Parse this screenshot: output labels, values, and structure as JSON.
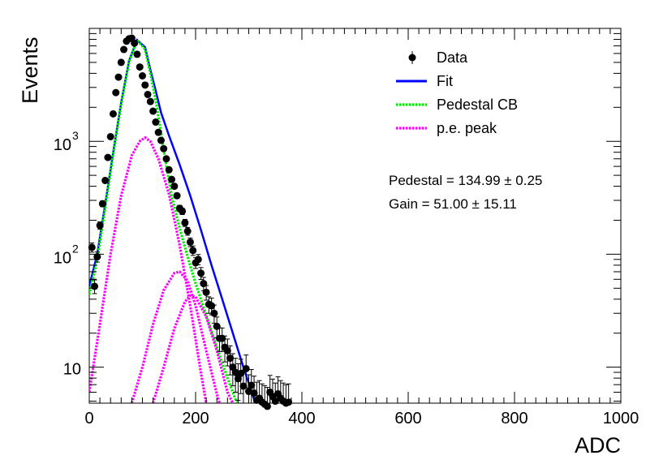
{
  "chart_data": {
    "type": "scatter",
    "xlabel": "ADC",
    "ylabel": "Events",
    "xlim": [
      0,
      1000
    ],
    "ylim": [
      4.8,
      10000
    ],
    "y_scale": "log",
    "grid": false,
    "legend_position": "top-right",
    "x_ticks": [
      "0",
      "200",
      "400",
      "600",
      "800",
      "1000"
    ],
    "y_ticks": [
      {
        "value": 10,
        "base": "10",
        "exp": ""
      },
      {
        "value": 100,
        "base": "10",
        "exp": "2"
      },
      {
        "value": 1000,
        "base": "10",
        "exp": "3"
      }
    ],
    "legend": [
      {
        "label": "Data",
        "kind": "marker",
        "color": "#000000"
      },
      {
        "label": "Fit",
        "kind": "line",
        "color": "#0000ff"
      },
      {
        "label": "Pedestal CB",
        "kind": "dotted",
        "color": "#00ee00"
      },
      {
        "label": "p.e. peak",
        "kind": "dotted",
        "color": "#ff00ff"
      }
    ],
    "annotations": [
      "Pedestal = 134.99 ± 0.25",
      "Gain = 51.00 ± 15.11"
    ],
    "series": [
      {
        "name": "Data",
        "style": "points",
        "color": "#000000",
        "points": [
          [
            5,
            115
          ],
          [
            10,
            52
          ],
          [
            15,
            95
          ],
          [
            20,
            180
          ],
          [
            25,
            280
          ],
          [
            30,
            450
          ],
          [
            35,
            720
          ],
          [
            40,
            1100
          ],
          [
            45,
            1750
          ],
          [
            50,
            2700
          ],
          [
            55,
            3700
          ],
          [
            60,
            5000
          ],
          [
            65,
            6500
          ],
          [
            70,
            7700
          ],
          [
            75,
            8100
          ],
          [
            80,
            8200
          ],
          [
            85,
            7400
          ],
          [
            90,
            5900
          ],
          [
            95,
            4550
          ],
          [
            100,
            3800
          ],
          [
            105,
            3150
          ],
          [
            110,
            2600
          ],
          [
            115,
            2250
          ],
          [
            120,
            1850
          ],
          [
            125,
            1480
          ],
          [
            130,
            1200
          ],
          [
            135,
            1020
          ],
          [
            140,
            860
          ],
          [
            145,
            700
          ],
          [
            150,
            560
          ],
          [
            155,
            460
          ],
          [
            160,
            400
          ],
          [
            165,
            330
          ],
          [
            170,
            255
          ],
          [
            175,
            240
          ],
          [
            180,
            190
          ],
          [
            185,
            160
          ],
          [
            190,
            128
          ],
          [
            195,
            108
          ],
          [
            200,
            84
          ],
          [
            205,
            90
          ],
          [
            210,
            68
          ],
          [
            215,
            55
          ],
          [
            220,
            46
          ],
          [
            225,
            36
          ],
          [
            230,
            35
          ],
          [
            235,
            30
          ],
          [
            240,
            23
          ],
          [
            245,
            18
          ],
          [
            250,
            18
          ],
          [
            255,
            15
          ],
          [
            260,
            14
          ],
          [
            265,
            12
          ],
          [
            270,
            10
          ],
          [
            275,
            9
          ],
          [
            280,
            7.9
          ],
          [
            285,
            8.8
          ],
          [
            290,
            6.8
          ],
          [
            295,
            9.7
          ],
          [
            300,
            6.1
          ],
          [
            305,
            6.9
          ],
          [
            310,
            5.9
          ],
          [
            315,
            5.1
          ],
          [
            320,
            5.3
          ],
          [
            325,
            4.9
          ],
          [
            330,
            4.7
          ],
          [
            335,
            4.5
          ],
          [
            340,
            6.0
          ],
          [
            345,
            5.5
          ],
          [
            350,
            5.0
          ],
          [
            355,
            5.8
          ],
          [
            360,
            5.3
          ],
          [
            365,
            5.0
          ],
          [
            370,
            4.8
          ],
          [
            375,
            4.9
          ]
        ]
      },
      {
        "name": "Fit",
        "style": "line",
        "color": "#0000ff",
        "points": [
          [
            0,
            52
          ],
          [
            15,
            100
          ],
          [
            30,
            280
          ],
          [
            45,
            800
          ],
          [
            60,
            2200
          ],
          [
            75,
            5200
          ],
          [
            90,
            7900
          ],
          [
            105,
            6800
          ],
          [
            115,
            4300
          ],
          [
            125,
            2800
          ],
          [
            135,
            1800
          ],
          [
            150,
            1120
          ],
          [
            170,
            620
          ],
          [
            190,
            330
          ],
          [
            210,
            165
          ],
          [
            230,
            80
          ],
          [
            250,
            40
          ],
          [
            270,
            20
          ],
          [
            290,
            10
          ],
          [
            310,
            5.2
          ],
          [
            315,
            4.8
          ]
        ]
      },
      {
        "name": "Pedestal CB",
        "style": "dotted",
        "color": "#00ee00",
        "points": [
          [
            0,
            44
          ],
          [
            15,
            90
          ],
          [
            30,
            260
          ],
          [
            45,
            780
          ],
          [
            60,
            2150
          ],
          [
            75,
            5100
          ],
          [
            90,
            7850
          ],
          [
            105,
            6500
          ],
          [
            115,
            4000
          ],
          [
            125,
            2300
          ],
          [
            135,
            1200
          ],
          [
            145,
            600
          ],
          [
            155,
            330
          ],
          [
            170,
            170
          ],
          [
            185,
            95
          ],
          [
            200,
            55
          ],
          [
            220,
            29
          ],
          [
            240,
            15
          ],
          [
            260,
            8
          ],
          [
            275,
            5.2
          ],
          [
            280,
            4.8
          ]
        ]
      },
      {
        "name": "p.e. peak",
        "style": "dotted",
        "color": "#ff00ff",
        "points": [
          [
            0,
            6
          ],
          [
            20,
            24
          ],
          [
            40,
            100
          ],
          [
            60,
            330
          ],
          [
            80,
            750
          ],
          [
            95,
            1000
          ],
          [
            105,
            1080
          ],
          [
            115,
            1000
          ],
          [
            130,
            700
          ],
          [
            150,
            340
          ],
          [
            170,
            120
          ],
          [
            190,
            35
          ],
          [
            210,
            9
          ],
          [
            220,
            4.8
          ]
        ]
      },
      {
        "name": "p.e. peak",
        "style": "dotted",
        "color": "#ff00ff",
        "points": [
          [
            80,
            4.8
          ],
          [
            100,
            10
          ],
          [
            120,
            24
          ],
          [
            140,
            48
          ],
          [
            160,
            68
          ],
          [
            170,
            70
          ],
          [
            185,
            58
          ],
          [
            200,
            35
          ],
          [
            220,
            14
          ],
          [
            240,
            5.8
          ],
          [
            245,
            4.8
          ]
        ]
      },
      {
        "name": "p.e. peak",
        "style": "dotted",
        "color": "#ff00ff",
        "points": [
          [
            120,
            4.8
          ],
          [
            140,
            10
          ],
          [
            160,
            22
          ],
          [
            180,
            38
          ],
          [
            190,
            43
          ],
          [
            200,
            42
          ],
          [
            220,
            28
          ],
          [
            240,
            14
          ],
          [
            260,
            6
          ],
          [
            270,
            4.8
          ]
        ]
      }
    ]
  }
}
